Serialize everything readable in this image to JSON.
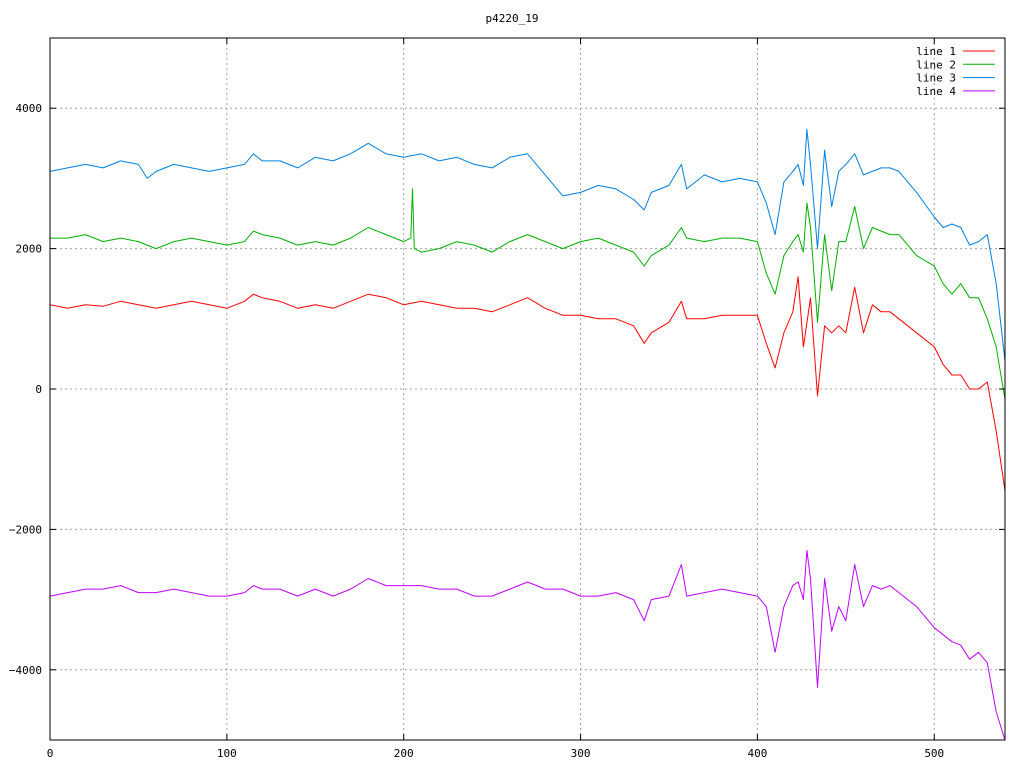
{
  "chart_data": {
    "type": "line",
    "title": "p4220_19",
    "xlabel": "",
    "ylabel": "",
    "xlim": [
      0,
      540
    ],
    "ylim": [
      -5000,
      5000
    ],
    "xticks": [
      0,
      100,
      200,
      300,
      400,
      500
    ],
    "yticks": [
      -4000,
      -2000,
      0,
      2000,
      4000
    ],
    "grid": true,
    "legend_position": "top-right",
    "series": [
      {
        "name": "line 1",
        "color": "#ff0000",
        "x": [
          0,
          10,
          20,
          30,
          40,
          50,
          60,
          70,
          80,
          90,
          100,
          110,
          115,
          120,
          130,
          140,
          150,
          160,
          170,
          180,
          190,
          200,
          210,
          220,
          230,
          240,
          250,
          260,
          270,
          280,
          290,
          300,
          310,
          320,
          330,
          336,
          340,
          350,
          357,
          360,
          370,
          380,
          390,
          400,
          405,
          410,
          415,
          420,
          423,
          426,
          430,
          434,
          438,
          442,
          446,
          450,
          455,
          460,
          465,
          470,
          475,
          480,
          490,
          500,
          505,
          510,
          515,
          520,
          525,
          530,
          535,
          540
        ],
        "y": [
          1200,
          1150,
          1200,
          1180,
          1250,
          1200,
          1150,
          1200,
          1250,
          1200,
          1150,
          1250,
          1350,
          1300,
          1250,
          1150,
          1200,
          1150,
          1250,
          1350,
          1300,
          1200,
          1250,
          1200,
          1150,
          1150,
          1100,
          1200,
          1300,
          1150,
          1050,
          1050,
          1000,
          1000,
          900,
          650,
          800,
          950,
          1250,
          1000,
          1000,
          1050,
          1050,
          1050,
          650,
          300,
          800,
          1100,
          1600,
          600,
          1300,
          -100,
          900,
          800,
          900,
          800,
          1450,
          800,
          1200,
          1100,
          1100,
          1000,
          800,
          600,
          350,
          200,
          200,
          0,
          0,
          100,
          -600,
          -1450
        ]
      },
      {
        "name": "line 2",
        "color": "#00b000",
        "x": [
          0,
          10,
          20,
          30,
          40,
          50,
          60,
          70,
          80,
          90,
          100,
          110,
          115,
          120,
          130,
          140,
          150,
          160,
          170,
          180,
          190,
          200,
          204,
          205,
          206,
          210,
          220,
          230,
          240,
          250,
          260,
          270,
          280,
          290,
          300,
          310,
          320,
          330,
          336,
          340,
          350,
          357,
          360,
          370,
          380,
          390,
          400,
          405,
          410,
          415,
          420,
          423,
          426,
          428,
          430,
          434,
          438,
          442,
          446,
          450,
          455,
          460,
          465,
          470,
          475,
          480,
          490,
          500,
          505,
          510,
          515,
          520,
          525,
          530,
          535,
          540
        ],
        "y": [
          2150,
          2150,
          2200,
          2100,
          2150,
          2100,
          2000,
          2100,
          2150,
          2100,
          2050,
          2100,
          2250,
          2200,
          2150,
          2050,
          2100,
          2050,
          2150,
          2300,
          2200,
          2100,
          2150,
          2850,
          2000,
          1950,
          2000,
          2100,
          2050,
          1950,
          2100,
          2200,
          2100,
          2000,
          2100,
          2150,
          2050,
          1950,
          1750,
          1900,
          2050,
          2300,
          2150,
          2100,
          2150,
          2150,
          2100,
          1650,
          1350,
          1900,
          2100,
          2200,
          1950,
          2650,
          2300,
          950,
          2200,
          1400,
          2100,
          2100,
          2600,
          2000,
          2300,
          2250,
          2200,
          2200,
          1900,
          1750,
          1500,
          1350,
          1500,
          1300,
          1300,
          1000,
          600,
          -150
        ]
      },
      {
        "name": "line 3",
        "color": "#0080e0",
        "x": [
          0,
          10,
          20,
          30,
          40,
          50,
          55,
          60,
          70,
          80,
          90,
          100,
          110,
          115,
          120,
          130,
          140,
          150,
          160,
          170,
          180,
          190,
          200,
          210,
          220,
          230,
          240,
          250,
          260,
          270,
          280,
          290,
          300,
          310,
          320,
          330,
          336,
          340,
          350,
          357,
          360,
          370,
          380,
          390,
          400,
          405,
          410,
          415,
          420,
          423,
          426,
          428,
          430,
          434,
          438,
          442,
          446,
          450,
          455,
          460,
          465,
          470,
          475,
          480,
          490,
          500,
          505,
          510,
          515,
          520,
          525,
          530,
          535,
          540
        ],
        "y": [
          3100,
          3150,
          3200,
          3150,
          3250,
          3200,
          3000,
          3100,
          3200,
          3150,
          3100,
          3150,
          3200,
          3350,
          3250,
          3250,
          3150,
          3300,
          3250,
          3350,
          3500,
          3350,
          3300,
          3350,
          3250,
          3300,
          3200,
          3150,
          3300,
          3350,
          3050,
          2750,
          2800,
          2900,
          2850,
          2700,
          2550,
          2800,
          2900,
          3200,
          2850,
          3050,
          2950,
          3000,
          2950,
          2650,
          2200,
          2950,
          3100,
          3200,
          2900,
          3700,
          3200,
          2000,
          3400,
          2600,
          3100,
          3200,
          3350,
          3050,
          3100,
          3150,
          3150,
          3100,
          2800,
          2450,
          2300,
          2350,
          2300,
          2050,
          2100,
          2200,
          1500,
          400
        ]
      },
      {
        "name": "line 4",
        "color": "#c000ff",
        "x": [
          0,
          10,
          20,
          30,
          40,
          50,
          60,
          70,
          80,
          90,
          100,
          110,
          115,
          120,
          130,
          140,
          150,
          160,
          170,
          180,
          190,
          200,
          210,
          220,
          230,
          240,
          250,
          260,
          270,
          280,
          290,
          300,
          310,
          320,
          330,
          336,
          340,
          350,
          357,
          360,
          370,
          380,
          390,
          400,
          405,
          410,
          415,
          420,
          423,
          426,
          428,
          430,
          434,
          438,
          442,
          446,
          450,
          455,
          460,
          465,
          470,
          475,
          480,
          490,
          500,
          505,
          510,
          515,
          520,
          525,
          530,
          535,
          540
        ],
        "y": [
          -2950,
          -2900,
          -2850,
          -2850,
          -2800,
          -2900,
          -2900,
          -2850,
          -2900,
          -2950,
          -2950,
          -2900,
          -2800,
          -2850,
          -2850,
          -2950,
          -2850,
          -2950,
          -2850,
          -2700,
          -2800,
          -2800,
          -2800,
          -2850,
          -2850,
          -2950,
          -2950,
          -2850,
          -2750,
          -2850,
          -2850,
          -2950,
          -2950,
          -2900,
          -3000,
          -3300,
          -3000,
          -2950,
          -2500,
          -2950,
          -2900,
          -2850,
          -2900,
          -2950,
          -3100,
          -3750,
          -3100,
          -2800,
          -2750,
          -3000,
          -2300,
          -2700,
          -4250,
          -2700,
          -3450,
          -3100,
          -3300,
          -2500,
          -3100,
          -2800,
          -2850,
          -2800,
          -2900,
          -3100,
          -3400,
          -3500,
          -3600,
          -3650,
          -3850,
          -3750,
          -3900,
          -4600,
          -5000
        ]
      }
    ]
  }
}
